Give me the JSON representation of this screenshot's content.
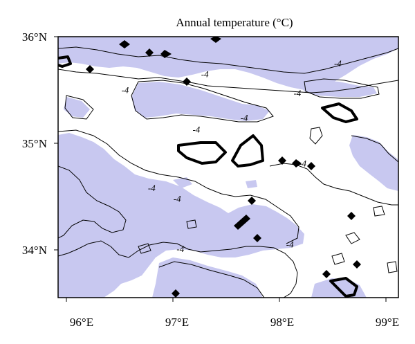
{
  "title": "Annual temperature (°C)",
  "axes": {
    "x_ticks": [
      "96°E",
      "97°E",
      "98°E",
      "99°E"
    ],
    "y_ticks": [
      "36°N",
      "35°N",
      "34°N"
    ],
    "lon_range": [
      95.9,
      99.1
    ],
    "lat_range": [
      33.55,
      36.0
    ]
  },
  "shading": {
    "color": "#c8c8f0",
    "meaning": "below -4"
  },
  "contour_labels": [
    {
      "text": "-4",
      "lon": 97.28,
      "lat": 35.62
    },
    {
      "text": "-4",
      "lon": 96.53,
      "lat": 35.47
    },
    {
      "text": "-4",
      "lon": 97.2,
      "lat": 35.1
    },
    {
      "text": "-4",
      "lon": 97.65,
      "lat": 35.21
    },
    {
      "text": "-4",
      "lon": 96.78,
      "lat": 34.55
    },
    {
      "text": "-4",
      "lon": 97.02,
      "lat": 34.45
    },
    {
      "text": "-4",
      "lon": 97.05,
      "lat": 33.98
    },
    {
      "text": "-4",
      "lon": 98.08,
      "lat": 34.02
    },
    {
      "text": "-4",
      "lon": 98.2,
      "lat": 34.78
    },
    {
      "text": "-4",
      "lon": 98.15,
      "lat": 35.44
    },
    {
      "text": "-4",
      "lon": 98.53,
      "lat": 35.72
    }
  ]
}
